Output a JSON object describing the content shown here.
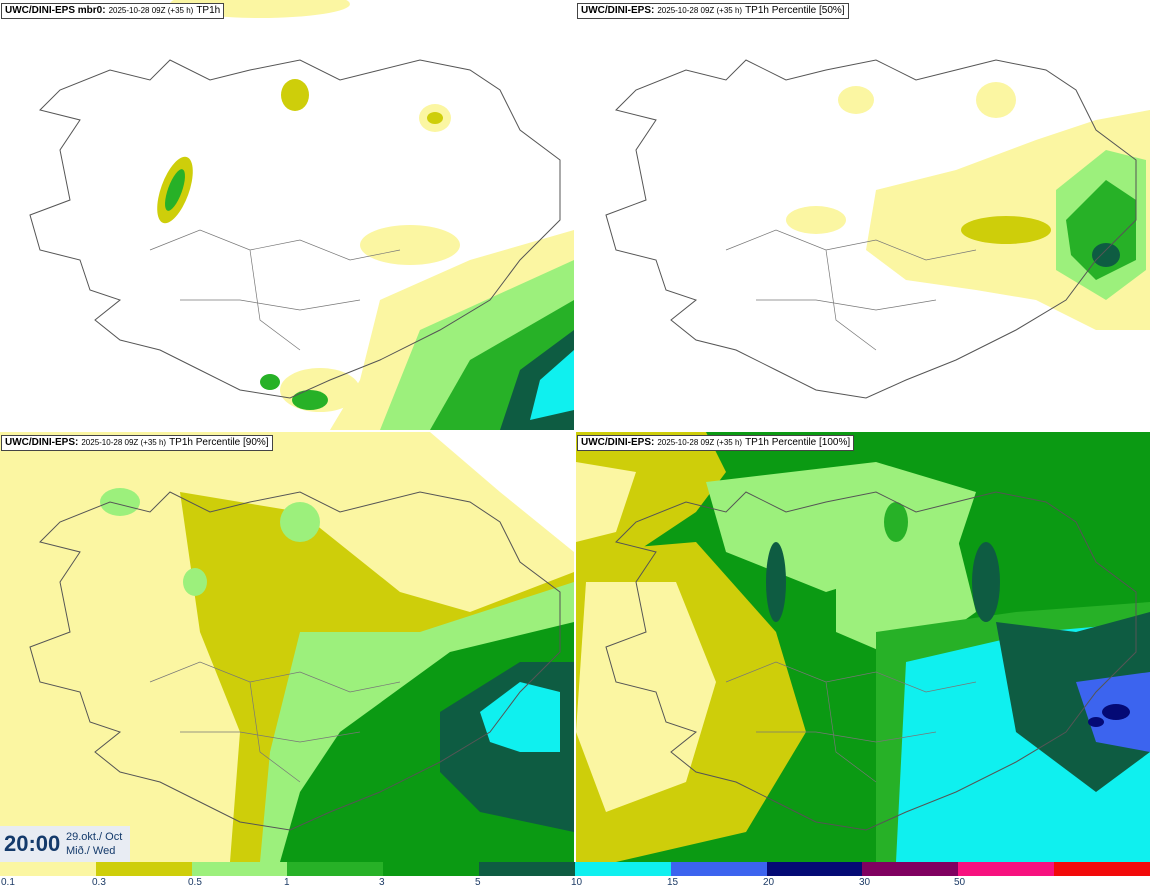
{
  "panels": [
    {
      "source": "UWC/DINI-EPS mbr0",
      "run": "2025-10-28 09Z (+35 h)",
      "variable": "TP1h"
    },
    {
      "source": "UWC/DINI-EPS",
      "run": "2025-10-28 09Z (+35 h)",
      "variable": "TP1h Percentile [50%]"
    },
    {
      "source": "UWC/DINI-EPS",
      "run": "2025-10-28 09Z (+35 h)",
      "variable": "TP1h Percentile [90%]"
    },
    {
      "source": "UWC/DINI-EPS",
      "run": "2025-10-28 09Z (+35 h)",
      "variable": "TP1h Percentile [100%]"
    }
  ],
  "valid_time": {
    "clock": "20:00",
    "date_line1": "29.okt./ Oct",
    "date_line2": "Mið./ Wed"
  },
  "colorbar": {
    "colors": [
      "#fbf6a2",
      "#cece0a",
      "#9cf07c",
      "#27b127",
      "#0b9a13",
      "#0e5c42",
      "#0ff0ef",
      "#3c64ef",
      "#040a75",
      "#800060",
      "#f7117f",
      "#f20a0a"
    ],
    "labels": [
      "0.1",
      "0.3",
      "0.5",
      "1",
      "3",
      "5",
      "10",
      "15",
      "20",
      "30",
      "50"
    ]
  }
}
